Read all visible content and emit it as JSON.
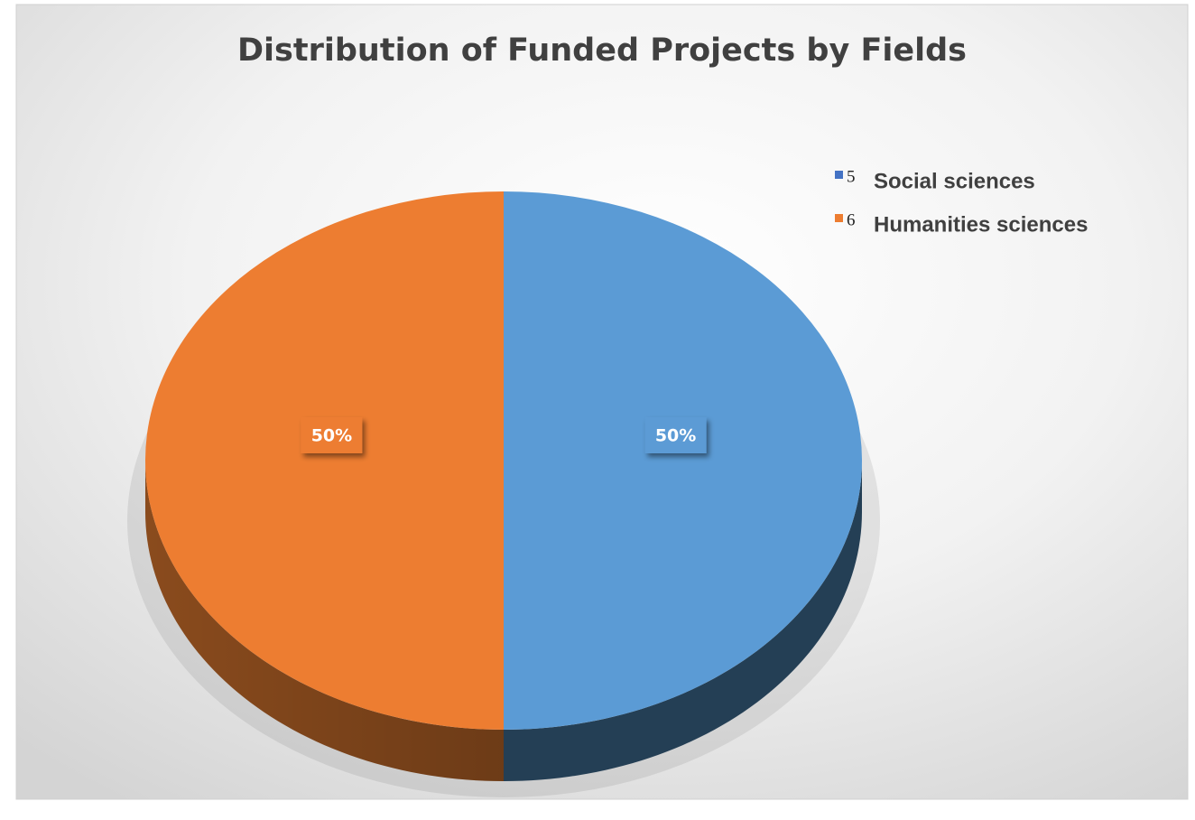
{
  "chart_data": {
    "type": "pie",
    "title": "Distribution of Funded Projects by Fields",
    "categories": [
      "Social sciences",
      "Humanities sciences"
    ],
    "legend_numbers": [
      "5",
      "6"
    ],
    "values": [
      50,
      50
    ],
    "value_labels": [
      "50%",
      "50%"
    ],
    "colors": [
      "#5b9bd5",
      "#ed7d31"
    ],
    "side_colors": [
      "#243f55",
      "#8a4b1d"
    ],
    "legend": "top-right"
  }
}
